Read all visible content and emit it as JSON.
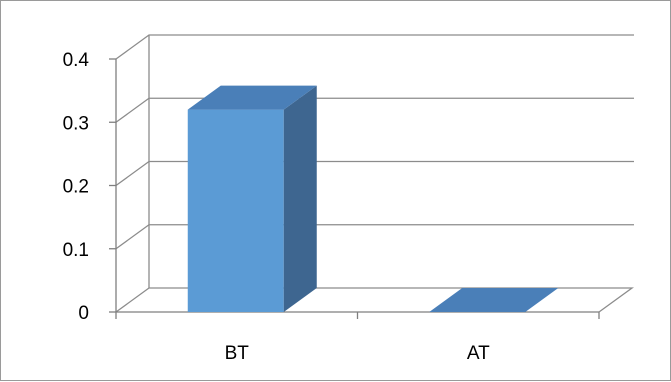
{
  "chart_data": {
    "type": "bar",
    "three_d": true,
    "categories": [
      "BT",
      "AT"
    ],
    "values": [
      0.32,
      0.0
    ],
    "ylim": [
      0,
      0.4
    ],
    "yticks": [
      {
        "value": 0,
        "label": "0"
      },
      {
        "value": 0.1,
        "label": "0.1"
      },
      {
        "value": 0.2,
        "label": "0.2"
      },
      {
        "value": 0.3,
        "label": "0.3"
      },
      {
        "value": 0.4,
        "label": "0.4"
      }
    ],
    "grid": true,
    "legend": "none",
    "colors": {
      "bar_front": "#5b9bd5",
      "bar_side": "#3e6690",
      "bar_top": "#4a7fb8",
      "gridline": "#8c8c8c",
      "axis": "#7f7f7f"
    }
  }
}
